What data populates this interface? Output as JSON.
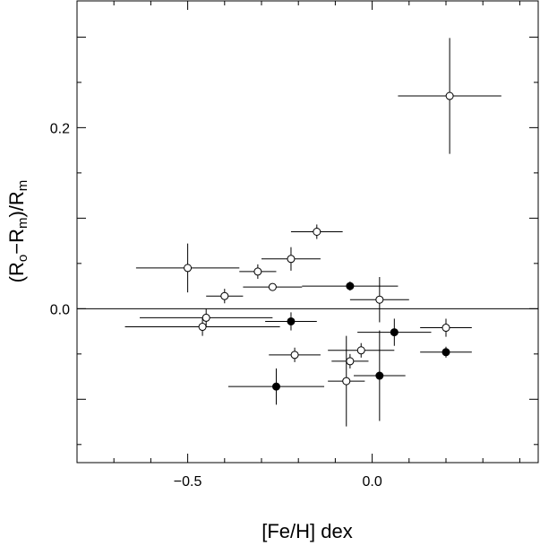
{
  "chart_data": {
    "type": "scatter",
    "xlabel": "[Fe/H] dex",
    "ylabel": "(R_o−R_m)/R_m",
    "xlim": [
      -0.8,
      0.45
    ],
    "ylim": [
      -0.17,
      0.34
    ],
    "x_ticks": [
      -0.5,
      0.0
    ],
    "x_tick_labels": [
      "−0.5",
      "0.0"
    ],
    "y_ticks": [
      0.0,
      0.2
    ],
    "y_tick_labels": [
      "0.0",
      "0.2"
    ],
    "reference_line_y": 0.0,
    "grid": false,
    "series": [
      {
        "marker": "open-circle",
        "points": [
          {
            "x": 0.21,
            "y": 0.235,
            "xerr": 0.14,
            "yerr": 0.064
          },
          {
            "x": -0.15,
            "y": 0.085,
            "xerr": 0.07,
            "yerr": 0.008
          },
          {
            "x": -0.5,
            "y": 0.045,
            "xerr": 0.14,
            "yerr": 0.027
          },
          {
            "x": -0.31,
            "y": 0.041,
            "xerr": 0.05,
            "yerr": 0.008
          },
          {
            "x": -0.22,
            "y": 0.055,
            "xerr": 0.08,
            "yerr": 0.013
          },
          {
            "x": -0.27,
            "y": 0.024,
            "xerr": 0.08,
            "yerr": 0.004
          },
          {
            "x": -0.4,
            "y": 0.014,
            "xerr": 0.05,
            "yerr": 0.008
          },
          {
            "x": 0.02,
            "y": 0.01,
            "xerr": 0.08,
            "yerr": 0.025
          },
          {
            "x": -0.45,
            "y": -0.01,
            "xerr": 0.18,
            "yerr": 0.01
          },
          {
            "x": -0.46,
            "y": -0.02,
            "xerr": 0.21,
            "yerr": 0.01
          },
          {
            "x": 0.2,
            "y": -0.021,
            "xerr": 0.07,
            "yerr": 0.01
          },
          {
            "x": -0.21,
            "y": -0.051,
            "xerr": 0.07,
            "yerr": 0.008
          },
          {
            "x": -0.03,
            "y": -0.046,
            "xerr": 0.09,
            "yerr": 0.008
          },
          {
            "x": -0.06,
            "y": -0.058,
            "xerr": 0.05,
            "yerr": 0.008
          },
          {
            "x": -0.07,
            "y": -0.08,
            "xerr": 0.05,
            "yerr": 0.05
          }
        ]
      },
      {
        "marker": "filled-circle",
        "points": [
          {
            "x": -0.06,
            "y": 0.025,
            "xerr": 0.13,
            "yerr": 0.005
          },
          {
            "x": -0.22,
            "y": -0.014,
            "xerr": 0.07,
            "yerr": 0.01
          },
          {
            "x": 0.06,
            "y": -0.026,
            "xerr": 0.1,
            "yerr": 0.015
          },
          {
            "x": 0.2,
            "y": -0.048,
            "xerr": 0.07,
            "yerr": 0.006
          },
          {
            "x": -0.26,
            "y": -0.086,
            "xerr": 0.13,
            "yerr": 0.02
          },
          {
            "x": 0.02,
            "y": -0.074,
            "xerr": 0.07,
            "yerr": 0.05
          }
        ]
      }
    ]
  }
}
